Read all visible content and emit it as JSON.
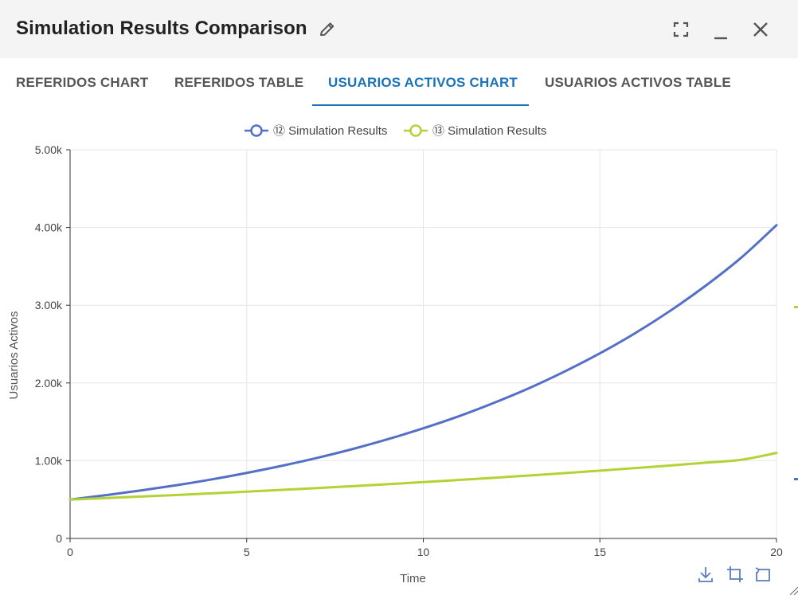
{
  "window": {
    "title": "Simulation Results Comparison",
    "icons": {
      "edit": "pencil-icon",
      "fullscreen": "fullscreen-icon",
      "minimize": "minimize-icon",
      "close": "close-icon"
    }
  },
  "tabs": [
    {
      "label": "REFERIDOS CHART",
      "active": false
    },
    {
      "label": "REFERIDOS TABLE",
      "active": false
    },
    {
      "label": "USUARIOS ACTIVOS CHART",
      "active": true
    },
    {
      "label": "USUARIOS ACTIVOS TABLE",
      "active": false
    }
  ],
  "toolbox": {
    "icons": [
      "download-icon",
      "data-zoom-icon",
      "restore-icon"
    ]
  },
  "colors": {
    "accent": "#1a73b8",
    "series_blue": "#5470c6",
    "series_green": "#b2d235",
    "grid": "#e6e6e6",
    "axis": "#333333"
  },
  "chart_data": {
    "type": "line",
    "xlabel": "Time",
    "ylabel": "Usuarios Activos",
    "xlim": [
      0,
      20
    ],
    "ylim": [
      0,
      5000
    ],
    "x_ticks": [
      0,
      5,
      10,
      15,
      20
    ],
    "x_tick_labels": [
      "0",
      "5",
      "10",
      "15",
      "20"
    ],
    "y_ticks": [
      0,
      1000,
      2000,
      3000,
      4000,
      5000
    ],
    "y_tick_labels": [
      "0",
      "1.00k",
      "2.00k",
      "3.00k",
      "4.00k",
      "5.00k"
    ],
    "grid": true,
    "legend_position": "top-center",
    "x": [
      0,
      1,
      2,
      3,
      4,
      5,
      6,
      7,
      8,
      9,
      10,
      11,
      12,
      13,
      14,
      15,
      16,
      17,
      18,
      19,
      20
    ],
    "series": [
      {
        "name": "⑫ Simulation Results",
        "color": "#5470c6",
        "values": [
          500,
          556,
          617,
          684,
          759,
          843,
          935,
          1037,
          1150,
          1277,
          1417,
          1571,
          1744,
          1934,
          2147,
          2381,
          2641,
          2931,
          3253,
          3611,
          4030
        ]
      },
      {
        "name": "⑬ Simulation Results",
        "color": "#b2d235",
        "values": [
          500,
          519,
          539,
          559,
          580,
          602,
          625,
          648,
          673,
          698,
          725,
          752,
          780,
          810,
          840,
          872,
          905,
          939,
          975,
          1012,
          1100
        ]
      }
    ]
  }
}
